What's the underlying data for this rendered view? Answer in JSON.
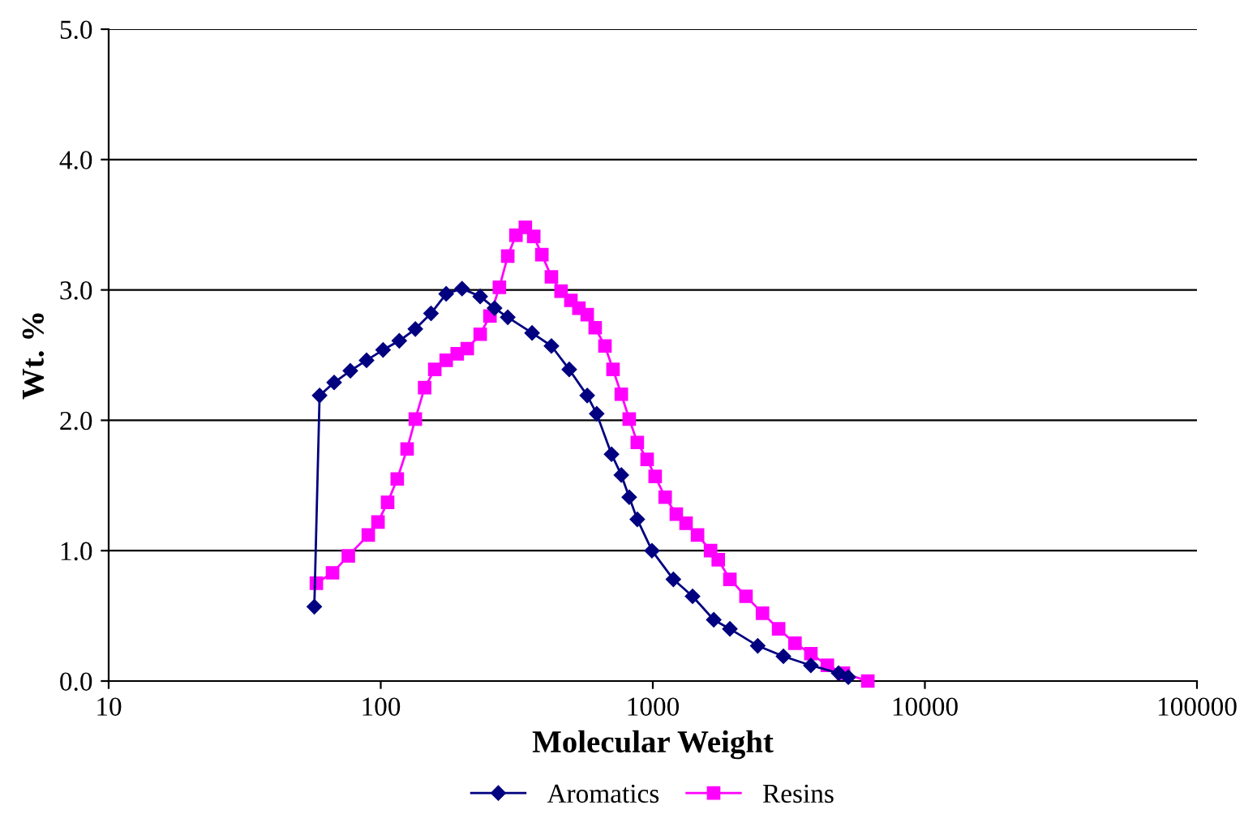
{
  "chart_data": {
    "type": "line",
    "xlabel": "Molecular Weight",
    "ylabel": "Wt. %",
    "log": "x",
    "xlim": [
      10,
      100000
    ],
    "xticks": [
      10,
      100,
      1000,
      10000,
      100000
    ],
    "ylim": [
      0,
      5
    ],
    "yticks": [
      {
        "value": 0,
        "label": "0.0"
      },
      {
        "value": 1,
        "label": "1.0"
      },
      {
        "value": 2,
        "label": "2.0"
      },
      {
        "value": 3,
        "label": "3.0"
      },
      {
        "value": 4,
        "label": "4.0"
      },
      {
        "value": 5,
        "label": "5.0"
      }
    ],
    "grid": "y",
    "legend": "bottom",
    "line_style": "solid",
    "series": [
      {
        "name": "Aromatics",
        "color": "#000080",
        "marker": "diamond",
        "x": [
          57,
          59.6,
          67.4,
          77.3,
          88.7,
          102,
          117,
          134,
          153,
          174,
          199,
          232,
          262,
          293,
          360,
          424,
          493,
          574,
          622,
          705,
          766,
          819,
          877,
          993,
          1190,
          1400,
          1675,
          1920,
          2430,
          3020,
          3810,
          4820,
          5230
        ],
        "values": [
          0.57,
          2.19,
          2.29,
          2.38,
          2.46,
          2.54,
          2.61,
          2.7,
          2.82,
          2.97,
          3.01,
          2.95,
          2.86,
          2.79,
          2.67,
          2.57,
          2.39,
          2.19,
          2.05,
          1.74,
          1.58,
          1.41,
          1.24,
          1.0,
          0.78,
          0.65,
          0.47,
          0.4,
          0.27,
          0.19,
          0.12,
          0.06,
          0.03
        ]
      },
      {
        "name": "Resins",
        "color": "#ff00ff",
        "marker": "square",
        "x": [
          58,
          66.5,
          76,
          90,
          97.7,
          106,
          115,
          125,
          134,
          145,
          158,
          174,
          191,
          208,
          232,
          252,
          273,
          293,
          314,
          340,
          365,
          391,
          424,
          460,
          500,
          535,
          574,
          614,
          667,
          714,
          766,
          819,
          877,
          953,
          1020,
          1110,
          1220,
          1325,
          1460,
          1630,
          1740,
          1920,
          2200,
          2530,
          2900,
          3330,
          3810,
          4380,
          5020,
          6170
        ],
        "values": [
          0.75,
          0.83,
          0.96,
          1.12,
          1.22,
          1.37,
          1.55,
          1.78,
          2.01,
          2.25,
          2.39,
          2.46,
          2.51,
          2.55,
          2.66,
          2.8,
          3.02,
          3.26,
          3.42,
          3.48,
          3.41,
          3.27,
          3.1,
          2.99,
          2.92,
          2.86,
          2.81,
          2.71,
          2.57,
          2.39,
          2.2,
          2.01,
          1.83,
          1.7,
          1.57,
          1.41,
          1.28,
          1.21,
          1.12,
          1.0,
          0.93,
          0.78,
          0.65,
          0.52,
          0.4,
          0.29,
          0.21,
          0.12,
          0.06,
          0.0
        ]
      }
    ]
  }
}
